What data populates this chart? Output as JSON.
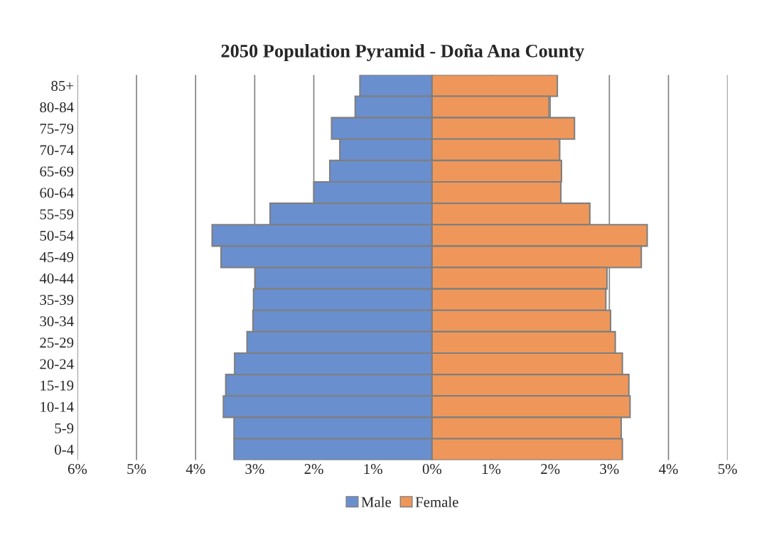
{
  "chart_data": {
    "type": "bar",
    "orientation": "horizontal",
    "title": "2050 Population Pyramid - Doña Ana County",
    "categories": [
      "85+",
      "80-84",
      "75-79",
      "70-74",
      "65-69",
      "60-64",
      "55-59",
      "50-54",
      "45-49",
      "40-44",
      "35-39",
      "30-34",
      "25-29",
      "20-24",
      "15-19",
      "10-14",
      "5-9",
      "0-4"
    ],
    "series": [
      {
        "name": "Male",
        "color": "#6a8fcf",
        "values": [
          -1.22,
          -1.3,
          -1.7,
          -1.56,
          -1.73,
          -2.0,
          -2.74,
          -3.72,
          -3.57,
          -2.99,
          -3.02,
          -3.03,
          -3.13,
          -3.34,
          -3.49,
          -3.53,
          -3.35,
          -3.35
        ]
      },
      {
        "name": "Female",
        "color": "#ef975a",
        "values": [
          2.12,
          1.98,
          2.41,
          2.16,
          2.19,
          2.18,
          2.67,
          3.64,
          3.54,
          2.96,
          2.94,
          3.02,
          3.1,
          3.22,
          3.33,
          3.35,
          3.2,
          3.22
        ]
      }
    ],
    "xlim": [
      -6,
      5
    ],
    "xticks": [
      {
        "value": -6,
        "label": "6%"
      },
      {
        "value": -5,
        "label": "5%"
      },
      {
        "value": -4,
        "label": "4%"
      },
      {
        "value": -3,
        "label": "3%"
      },
      {
        "value": -2,
        "label": "2%"
      },
      {
        "value": -1,
        "label": "1%"
      },
      {
        "value": 0,
        "label": "0%"
      },
      {
        "value": 1,
        "label": "1%"
      },
      {
        "value": 2,
        "label": "2%"
      },
      {
        "value": 3,
        "label": "3%"
      },
      {
        "value": 4,
        "label": "4%"
      },
      {
        "value": 5,
        "label": "5%"
      }
    ],
    "grid": "x",
    "legend": "bottom",
    "stacked": true
  }
}
